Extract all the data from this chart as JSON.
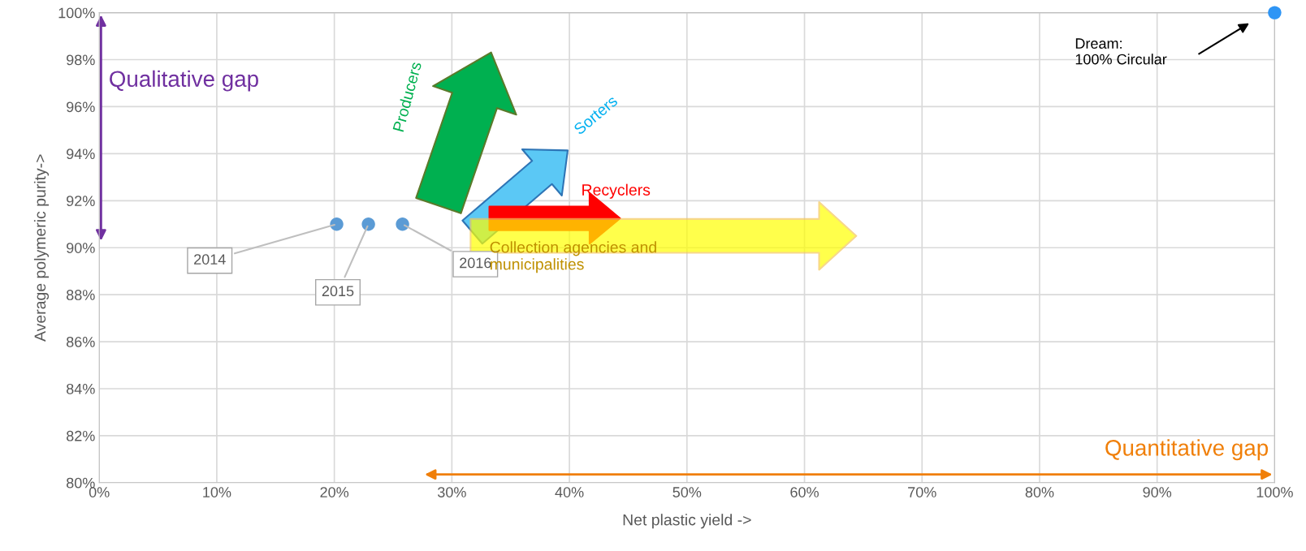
{
  "chart_data": {
    "type": "scatter",
    "xlabel": "Net plastic yield ->",
    "ylabel": "Average polymeric purity->",
    "xlim": [
      0,
      100
    ],
    "ylim": [
      80,
      100
    ],
    "xticks": [
      {
        "value": 0,
        "label": "0%"
      },
      {
        "value": 10,
        "label": "10%"
      },
      {
        "value": 20,
        "label": "20%"
      },
      {
        "value": 30,
        "label": "30%"
      },
      {
        "value": 40,
        "label": "40%"
      },
      {
        "value": 50,
        "label": "50%"
      },
      {
        "value": 60,
        "label": "60%"
      },
      {
        "value": 70,
        "label": "70%"
      },
      {
        "value": 80,
        "label": "80%"
      },
      {
        "value": 90,
        "label": "90%"
      },
      {
        "value": 100,
        "label": "100%"
      }
    ],
    "yticks": [
      {
        "value": 80,
        "label": "80%"
      },
      {
        "value": 82,
        "label": "82%"
      },
      {
        "value": 84,
        "label": "84%"
      },
      {
        "value": 86,
        "label": "86%"
      },
      {
        "value": 88,
        "label": "88%"
      },
      {
        "value": 90,
        "label": "90%"
      },
      {
        "value": 92,
        "label": "92%"
      },
      {
        "value": 94,
        "label": "94%"
      },
      {
        "value": 96,
        "label": "96%"
      },
      {
        "value": 98,
        "label": "98%"
      },
      {
        "value": 100,
        "label": "100%"
      }
    ],
    "grid": true,
    "marker": "circle",
    "series": [
      {
        "x": [
          20.2,
          22.9,
          25.8,
          100
        ],
        "values": [
          91,
          91,
          91,
          100
        ],
        "colors": [
          "#5b9bd5",
          "#5b9bd5",
          "#5b9bd5",
          "#2e95f5"
        ]
      }
    ],
    "annotations": [
      {
        "text": "2014",
        "x": 20.2,
        "y": 91
      },
      {
        "text": "2015",
        "x": 22.9,
        "y": 91
      },
      {
        "text": "2016",
        "x": 25.8,
        "y": 91
      },
      "Dream:\n100% Circular",
      "Qualitative gap",
      "Quantitative gap",
      "Producers",
      "Sorters",
      "Recyclers",
      "Collection agencies and\nmunicipalities"
    ]
  }
}
